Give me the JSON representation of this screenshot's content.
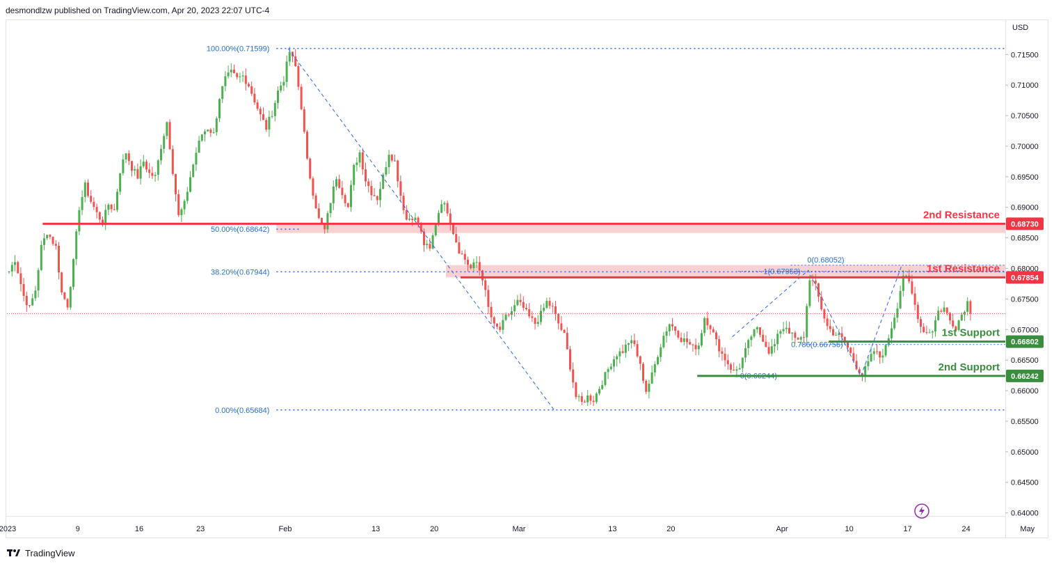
{
  "header": {
    "published_text": "desmondlzw published on TradingView.com, Apr 20, 2023 22:07 UTC-4"
  },
  "footer": {
    "brand": "TradingView"
  },
  "axis": {
    "currency": "USD"
  },
  "colors": {
    "up": "#4caf50",
    "down": "#f05350",
    "resistance": "#f23645",
    "support": "#388e3c",
    "fib": "#2962ff",
    "fib_text": "#2a6fc9",
    "zone": "#f7c1c1",
    "grid_border": "#e0e3eb",
    "axis_text": "#131722"
  },
  "chart_data": {
    "type": "candlestick",
    "symbol_note": "",
    "ylim": [
      0.64,
      0.7205
    ],
    "y_ticks": [
      "0.71500",
      "0.71000",
      "0.70500",
      "0.70000",
      "0.69500",
      "0.69000",
      "0.68500",
      "0.68000",
      "0.67500",
      "0.67000",
      "0.66500",
      "0.66000",
      "0.65500",
      "0.65000",
      "0.64500",
      "0.64000"
    ],
    "x_ticks": [
      {
        "label": "2023",
        "bar": 0
      },
      {
        "label": "9",
        "bar": 24
      },
      {
        "label": "16",
        "bar": 45
      },
      {
        "label": "23",
        "bar": 66
      },
      {
        "label": "Feb",
        "bar": 95
      },
      {
        "label": "13",
        "bar": 126
      },
      {
        "label": "20",
        "bar": 146
      },
      {
        "label": "Mar",
        "bar": 175
      },
      {
        "label": "13",
        "bar": 207
      },
      {
        "label": "20",
        "bar": 227
      },
      {
        "label": "Apr",
        "bar": 265
      },
      {
        "label": "10",
        "bar": 288
      },
      {
        "label": "17",
        "bar": 308
      },
      {
        "label": "24",
        "bar": 328
      },
      {
        "label": "May",
        "bar": 349
      }
    ],
    "bar_count": 330,
    "current_price": 0.6726,
    "candles_note": "OHLC generated from these anchor closes (approximate, read from chart)",
    "anchor_closes": [
      [
        0,
        0.6795
      ],
      [
        2,
        0.6815
      ],
      [
        5,
        0.6755
      ],
      [
        7,
        0.6735
      ],
      [
        9,
        0.6765
      ],
      [
        11,
        0.6835
      ],
      [
        13,
        0.686
      ],
      [
        16,
        0.6835
      ],
      [
        18,
        0.676
      ],
      [
        20,
        0.674
      ],
      [
        22,
        0.681
      ],
      [
        24,
        0.69
      ],
      [
        26,
        0.6935
      ],
      [
        28,
        0.691
      ],
      [
        30,
        0.689
      ],
      [
        32,
        0.6875
      ],
      [
        34,
        0.6905
      ],
      [
        36,
        0.6895
      ],
      [
        38,
        0.696
      ],
      [
        40,
        0.699
      ],
      [
        42,
        0.6965
      ],
      [
        44,
        0.695
      ],
      [
        46,
        0.6975
      ],
      [
        48,
        0.6955
      ],
      [
        50,
        0.695
      ],
      [
        52,
        0.7
      ],
      [
        54,
        0.704
      ],
      [
        56,
        0.696
      ],
      [
        58,
        0.6885
      ],
      [
        60,
        0.6905
      ],
      [
        62,
        0.695
      ],
      [
        64,
        0.699
      ],
      [
        66,
        0.702
      ],
      [
        68,
        0.703
      ],
      [
        70,
        0.702
      ],
      [
        72,
        0.708
      ],
      [
        74,
        0.711
      ],
      [
        76,
        0.712
      ],
      [
        78,
        0.711
      ],
      [
        80,
        0.7115
      ],
      [
        82,
        0.71
      ],
      [
        84,
        0.7075
      ],
      [
        86,
        0.705
      ],
      [
        88,
        0.703
      ],
      [
        90,
        0.7055
      ],
      [
        92,
        0.709
      ],
      [
        94,
        0.711
      ],
      [
        96,
        0.7155
      ],
      [
        98,
        0.713
      ],
      [
        100,
        0.7065
      ],
      [
        102,
        0.6975
      ],
      [
        104,
        0.6925
      ],
      [
        106,
        0.688
      ],
      [
        108,
        0.6862
      ],
      [
        110,
        0.691
      ],
      [
        112,
        0.695
      ],
      [
        114,
        0.6925
      ],
      [
        116,
        0.69
      ],
      [
        118,
        0.6965
      ],
      [
        120,
        0.699
      ],
      [
        122,
        0.6945
      ],
      [
        124,
        0.6925
      ],
      [
        126,
        0.6915
      ],
      [
        128,
        0.695
      ],
      [
        130,
        0.699
      ],
      [
        132,
        0.6975
      ],
      [
        134,
        0.692
      ],
      [
        136,
        0.688
      ],
      [
        138,
        0.6885
      ],
      [
        140,
        0.6875
      ],
      [
        142,
        0.684
      ],
      [
        144,
        0.683
      ],
      [
        146,
        0.6875
      ],
      [
        148,
        0.691
      ],
      [
        150,
        0.6895
      ],
      [
        152,
        0.686
      ],
      [
        154,
        0.683
      ],
      [
        156,
        0.6815
      ],
      [
        158,
        0.68
      ],
      [
        160,
        0.681
      ],
      [
        162,
        0.6785
      ],
      [
        164,
        0.6735
      ],
      [
        166,
        0.6705
      ],
      [
        168,
        0.67
      ],
      [
        170,
        0.672
      ],
      [
        172,
        0.673
      ],
      [
        174,
        0.6745
      ],
      [
        176,
        0.6735
      ],
      [
        178,
        0.672
      ],
      [
        180,
        0.671
      ],
      [
        182,
        0.6725
      ],
      [
        184,
        0.6745
      ],
      [
        186,
        0.6735
      ],
      [
        188,
        0.671
      ],
      [
        190,
        0.669
      ],
      [
        192,
        0.664
      ],
      [
        194,
        0.659
      ],
      [
        196,
        0.658
      ],
      [
        198,
        0.659
      ],
      [
        200,
        0.6585
      ],
      [
        202,
        0.6605
      ],
      [
        204,
        0.6625
      ],
      [
        206,
        0.6645
      ],
      [
        208,
        0.666
      ],
      [
        210,
        0.6665
      ],
      [
        212,
        0.668
      ],
      [
        214,
        0.6675
      ],
      [
        216,
        0.664
      ],
      [
        218,
        0.66
      ],
      [
        220,
        0.6625
      ],
      [
        222,
        0.666
      ],
      [
        224,
        0.669
      ],
      [
        226,
        0.671
      ],
      [
        228,
        0.67
      ],
      [
        230,
        0.6685
      ],
      [
        232,
        0.668
      ],
      [
        234,
        0.667
      ],
      [
        236,
        0.6675
      ],
      [
        238,
        0.672
      ],
      [
        240,
        0.6705
      ],
      [
        242,
        0.668
      ],
      [
        244,
        0.666
      ],
      [
        246,
        0.6645
      ],
      [
        248,
        0.663
      ],
      [
        250,
        0.664
      ],
      [
        252,
        0.6665
      ],
      [
        254,
        0.669
      ],
      [
        256,
        0.67
      ],
      [
        258,
        0.6685
      ],
      [
        260,
        0.6665
      ],
      [
        262,
        0.6675
      ],
      [
        264,
        0.67
      ],
      [
        266,
        0.6705
      ],
      [
        268,
        0.669
      ],
      [
        270,
        0.668
      ],
      [
        272,
        0.669
      ],
      [
        274,
        0.6785
      ],
      [
        276,
        0.677
      ],
      [
        278,
        0.6735
      ],
      [
        280,
        0.6705
      ],
      [
        282,
        0.6695
      ],
      [
        284,
        0.669
      ],
      [
        286,
        0.668
      ],
      [
        288,
        0.666
      ],
      [
        290,
        0.664
      ],
      [
        292,
        0.6625
      ],
      [
        294,
        0.6645
      ],
      [
        296,
        0.6665
      ],
      [
        298,
        0.6655
      ],
      [
        300,
        0.667
      ],
      [
        302,
        0.6705
      ],
      [
        304,
        0.674
      ],
      [
        306,
        0.679
      ],
      [
        308,
        0.6775
      ],
      [
        310,
        0.674
      ],
      [
        312,
        0.6705
      ],
      [
        314,
        0.6695
      ],
      [
        316,
        0.67
      ],
      [
        318,
        0.673
      ],
      [
        320,
        0.6735
      ],
      [
        322,
        0.6715
      ],
      [
        324,
        0.6705
      ],
      [
        326,
        0.6725
      ],
      [
        328,
        0.6745
      ],
      [
        329,
        0.6726
      ]
    ],
    "levels": {
      "r2": {
        "label": "2nd Resistance",
        "price": 0.6873,
        "value_label": "0.68730",
        "zone": [
          0.6858,
          0.6873
        ]
      },
      "r1": {
        "label": "1st Resistance",
        "price": 0.67854,
        "value_label": "0.67854",
        "zone": [
          0.67854,
          0.68055
        ]
      },
      "s1": {
        "label": "1st Support",
        "price": 0.66802,
        "value_label": "0.66802"
      },
      "s2": {
        "label": "2nd Support",
        "price": 0.66242,
        "value_label": "0.66242"
      }
    },
    "fib_main": [
      {
        "label": "100.00%(0.71599)",
        "price": 0.71599
      },
      {
        "label": "50.00%(0.68642)",
        "price": 0.68642
      },
      {
        "label": "38.20%(0.67944)",
        "price": 0.67944
      },
      {
        "label": "0.00%(0.65684)",
        "price": 0.65684
      }
    ],
    "fib_secondary": [
      {
        "label": "0(0.68052)",
        "price": 0.68052
      },
      {
        "label": "1(0.67953)",
        "price": 0.67953
      },
      {
        "label": "0.786(0.66756)",
        "price": 0.66756
      },
      {
        "label": "0(0.66244)",
        "price": 0.66244
      }
    ]
  }
}
